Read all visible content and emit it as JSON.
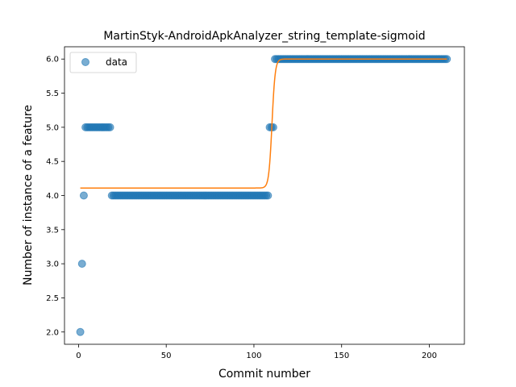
{
  "chart_data": {
    "type": "scatter",
    "title": "MartinStyk-AndroidApkAnalyzer_string_template-sigmoid",
    "xlabel": "Commit number",
    "ylabel": "Number of instance of a feature",
    "xlim": [
      -8,
      220
    ],
    "ylim": [
      1.82,
      6.18
    ],
    "xticks": [
      0,
      50,
      100,
      150,
      200
    ],
    "yticks": [
      2.0,
      2.5,
      3.0,
      3.5,
      4.0,
      4.5,
      5.0,
      5.5,
      6.0
    ],
    "xtick_labels": [
      "0",
      "50",
      "100",
      "150",
      "200"
    ],
    "ytick_labels": [
      "2.0",
      "2.5",
      "3.0",
      "3.5",
      "4.0",
      "4.5",
      "5.0",
      "5.5",
      "6.0"
    ],
    "legend": {
      "entries": [
        "data"
      ],
      "position": "upper-left"
    },
    "grid": false,
    "colors": {
      "points": "#1f77b4",
      "fit": "#ff7f0e"
    },
    "series": [
      {
        "name": "data",
        "kind": "scatter",
        "segments": [
          {
            "x_start": 1,
            "x_end": 1,
            "y": 2
          },
          {
            "x_start": 2,
            "x_end": 2,
            "y": 3
          },
          {
            "x_start": 3,
            "x_end": 3,
            "y": 4
          },
          {
            "x_start": 4,
            "x_end": 18,
            "y": 5
          },
          {
            "x_start": 19,
            "x_end": 108,
            "y": 4
          },
          {
            "x_start": 109,
            "x_end": 111,
            "y": 5
          },
          {
            "x_start": 112,
            "x_end": 210,
            "y": 6
          }
        ]
      },
      {
        "kind": "line",
        "model": "sigmoid",
        "low": 4.11,
        "high": 6.0,
        "midpoint": 110.3,
        "steepness": 1.1,
        "x_range": [
          1,
          210
        ]
      }
    ]
  }
}
